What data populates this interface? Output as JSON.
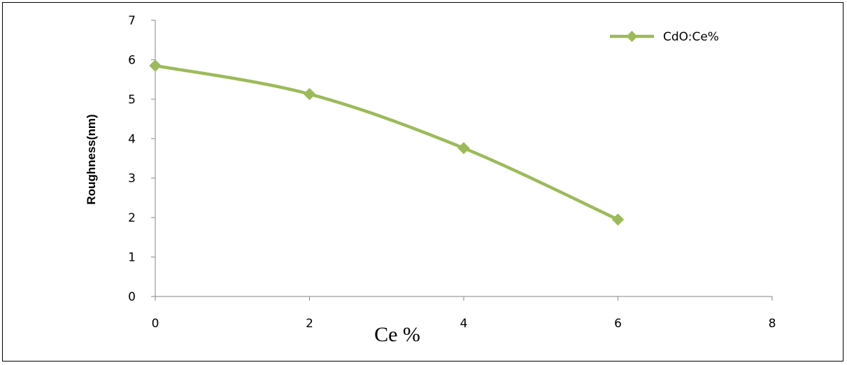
{
  "chart_data": {
    "type": "line",
    "title": "",
    "xlabel": "Ce %",
    "ylabel": "Roughness(nm)",
    "xlim": [
      0,
      8
    ],
    "ylim": [
      0,
      7
    ],
    "xticks": [
      "0",
      "2",
      "4",
      "6",
      "8"
    ],
    "yticks": [
      "0",
      "1",
      "2",
      "3",
      "4",
      "5",
      "6",
      "7"
    ],
    "grid": false,
    "legend_position": "top-right",
    "series": [
      {
        "name": "CdO:Ce%",
        "color": "#9bbb59",
        "marker": "diamond",
        "x": [
          0,
          2,
          4,
          6
        ],
        "y": [
          5.85,
          5.13,
          3.76,
          1.95
        ]
      }
    ]
  }
}
